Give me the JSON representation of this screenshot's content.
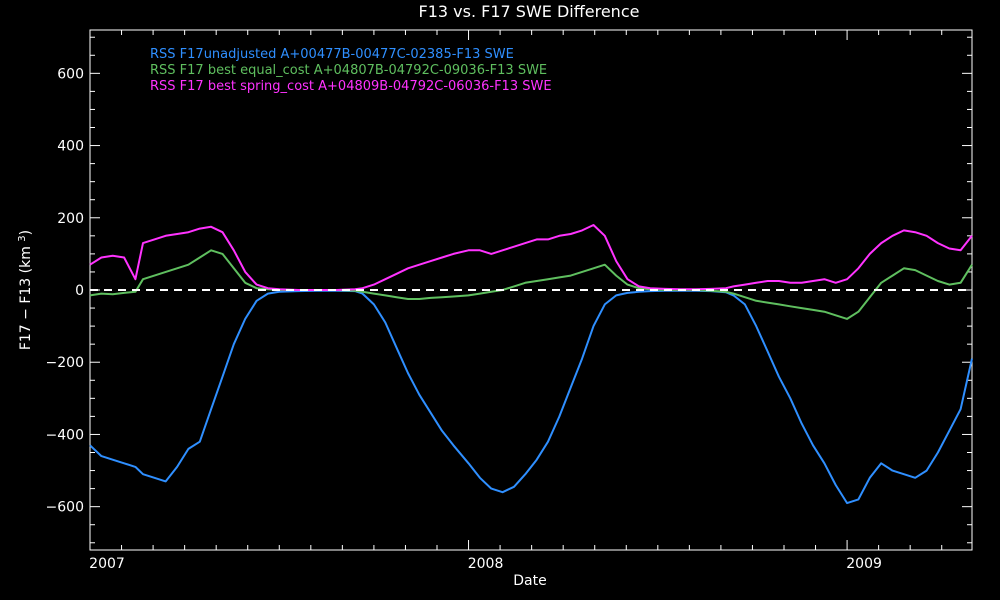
{
  "chart_data": {
    "type": "line",
    "title": "F13 vs. F17 SWE Difference",
    "xlabel": "Date",
    "ylabel": "F17 − F13 (km³)",
    "x_tick_labels": [
      "2007",
      "2008",
      "2009"
    ],
    "x_ticks": [
      2007.0,
      2008.0,
      2009.0
    ],
    "xlim": [
      2007.0,
      2009.33
    ],
    "ylim": [
      -720,
      720
    ],
    "y_ticks": [
      -600,
      -400,
      -200,
      0,
      200,
      400,
      600
    ],
    "y_tick_labels": [
      "−600",
      "−400",
      "−200",
      "0",
      "200",
      "400",
      "600"
    ],
    "grid": false,
    "legend_position": "top-left",
    "reference_line": {
      "y": 0,
      "style": "dashed",
      "color": "#ffffff"
    },
    "series": [
      {
        "name": "RSS F17unadjusted A+00477B-00477C-02385-F13 SWE",
        "color": "#2f8fff",
        "x": [
          2007.0,
          2007.03,
          2007.06,
          2007.09,
          2007.12,
          2007.14,
          2007.17,
          2007.2,
          2007.23,
          2007.26,
          2007.29,
          2007.32,
          2007.35,
          2007.38,
          2007.41,
          2007.44,
          2007.47,
          2007.5,
          2007.55,
          2007.6,
          2007.65,
          2007.7,
          2007.72,
          2007.75,
          2007.78,
          2007.81,
          2007.84,
          2007.87,
          2007.9,
          2007.93,
          2007.96,
          2008.0,
          2008.03,
          2008.06,
          2008.09,
          2008.12,
          2008.15,
          2008.18,
          2008.21,
          2008.24,
          2008.27,
          2008.3,
          2008.33,
          2008.36,
          2008.39,
          2008.42,
          2008.45,
          2008.48,
          2008.52,
          2008.56,
          2008.6,
          2008.64,
          2008.68,
          2008.7,
          2008.73,
          2008.76,
          2008.79,
          2008.82,
          2008.85,
          2008.88,
          2008.91,
          2008.94,
          2008.97,
          2009.0,
          2009.03,
          2009.06,
          2009.09,
          2009.12,
          2009.15,
          2009.18,
          2009.21,
          2009.24,
          2009.27,
          2009.3,
          2009.33
        ],
        "values": [
          -430,
          -460,
          -470,
          -480,
          -490,
          -510,
          -520,
          -530,
          -490,
          -440,
          -420,
          -330,
          -240,
          -150,
          -80,
          -30,
          -10,
          -5,
          -3,
          -2,
          -2,
          -3,
          -10,
          -40,
          -90,
          -160,
          -230,
          -290,
          -340,
          -390,
          -430,
          -480,
          -520,
          -550,
          -560,
          -545,
          -510,
          -470,
          -420,
          -350,
          -270,
          -190,
          -100,
          -40,
          -15,
          -8,
          -5,
          -3,
          -2,
          -2,
          -2,
          -3,
          -6,
          -15,
          -40,
          -100,
          -170,
          -240,
          -300,
          -370,
          -430,
          -480,
          -540,
          -590,
          -580,
          -520,
          -480,
          -500,
          -510,
          -520,
          -500,
          -450,
          -390,
          -330,
          -190
        ]
      },
      {
        "name": "RSS F17 best equal_cost A+04807B-04792C-09036-F13 SWE",
        "color": "#5fbf5f",
        "x": [
          2007.0,
          2007.03,
          2007.06,
          2007.09,
          2007.12,
          2007.14,
          2007.17,
          2007.2,
          2007.23,
          2007.26,
          2007.29,
          2007.32,
          2007.35,
          2007.38,
          2007.41,
          2007.44,
          2007.47,
          2007.5,
          2007.55,
          2007.6,
          2007.65,
          2007.7,
          2007.72,
          2007.75,
          2007.78,
          2007.81,
          2007.84,
          2007.87,
          2007.9,
          2007.93,
          2007.96,
          2008.0,
          2008.03,
          2008.06,
          2008.09,
          2008.12,
          2008.15,
          2008.18,
          2008.21,
          2008.24,
          2008.27,
          2008.3,
          2008.33,
          2008.36,
          2008.39,
          2008.42,
          2008.45,
          2008.48,
          2008.52,
          2008.56,
          2008.6,
          2008.64,
          2008.68,
          2008.7,
          2008.73,
          2008.76,
          2008.79,
          2008.82,
          2008.85,
          2008.88,
          2008.91,
          2008.94,
          2008.97,
          2009.0,
          2009.03,
          2009.06,
          2009.09,
          2009.12,
          2009.15,
          2009.18,
          2009.21,
          2009.24,
          2009.27,
          2009.3,
          2009.33
        ],
        "values": [
          -15,
          -10,
          -12,
          -8,
          -5,
          30,
          40,
          50,
          60,
          70,
          90,
          110,
          100,
          60,
          20,
          5,
          2,
          0,
          0,
          0,
          0,
          -2,
          -5,
          -10,
          -15,
          -20,
          -25,
          -25,
          -22,
          -20,
          -18,
          -15,
          -10,
          -5,
          0,
          10,
          20,
          25,
          30,
          35,
          40,
          50,
          60,
          70,
          40,
          15,
          5,
          2,
          0,
          0,
          0,
          -2,
          -5,
          -10,
          -20,
          -30,
          -35,
          -40,
          -45,
          -50,
          -55,
          -60,
          -70,
          -80,
          -60,
          -20,
          20,
          40,
          60,
          55,
          40,
          25,
          15,
          20,
          70
        ]
      },
      {
        "name": "RSS F17 best spring_cost A+04809B-04792C-06036-F13 SWE",
        "color": "#ff33ff",
        "x": [
          2007.0,
          2007.03,
          2007.06,
          2007.09,
          2007.12,
          2007.14,
          2007.17,
          2007.2,
          2007.23,
          2007.26,
          2007.29,
          2007.32,
          2007.35,
          2007.38,
          2007.41,
          2007.44,
          2007.47,
          2007.5,
          2007.55,
          2007.6,
          2007.65,
          2007.7,
          2007.72,
          2007.75,
          2007.78,
          2007.81,
          2007.84,
          2007.87,
          2007.9,
          2007.93,
          2007.96,
          2008.0,
          2008.03,
          2008.06,
          2008.09,
          2008.12,
          2008.15,
          2008.18,
          2008.21,
          2008.24,
          2008.27,
          2008.3,
          2008.33,
          2008.36,
          2008.39,
          2008.42,
          2008.45,
          2008.48,
          2008.52,
          2008.56,
          2008.6,
          2008.64,
          2008.68,
          2008.7,
          2008.73,
          2008.76,
          2008.79,
          2008.82,
          2008.85,
          2008.88,
          2008.91,
          2008.94,
          2008.97,
          2009.0,
          2009.03,
          2009.06,
          2009.09,
          2009.12,
          2009.15,
          2009.18,
          2009.21,
          2009.24,
          2009.27,
          2009.3,
          2009.33
        ],
        "values": [
          70,
          90,
          95,
          90,
          30,
          130,
          140,
          150,
          155,
          160,
          170,
          175,
          160,
          110,
          50,
          15,
          5,
          2,
          0,
          0,
          0,
          2,
          5,
          15,
          30,
          45,
          60,
          70,
          80,
          90,
          100,
          110,
          110,
          100,
          110,
          120,
          130,
          140,
          140,
          150,
          155,
          165,
          180,
          150,
          80,
          30,
          10,
          5,
          3,
          2,
          2,
          3,
          5,
          10,
          15,
          20,
          25,
          25,
          20,
          20,
          25,
          30,
          20,
          30,
          60,
          100,
          130,
          150,
          165,
          160,
          150,
          130,
          115,
          110,
          150
        ]
      }
    ]
  }
}
